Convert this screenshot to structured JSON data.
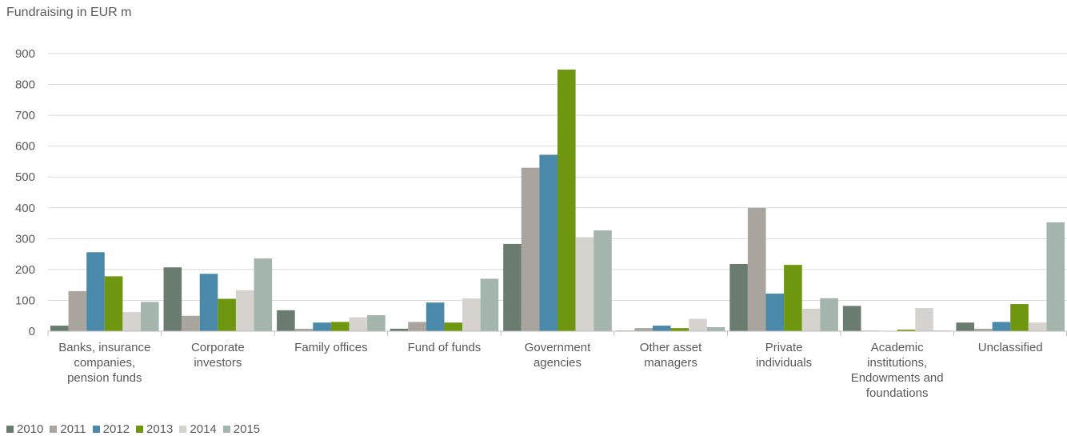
{
  "chart_data": {
    "type": "bar",
    "title": "Fundraising in EUR m",
    "categories": [
      "Banks, insurance companies, pension funds",
      "Corporate investors",
      "Family offices",
      "Fund of funds",
      "Government agencies",
      "Other asset managers",
      "Private individuals",
      "Academic institutions, Endowments and foundations",
      "Unclassified"
    ],
    "category_lines": [
      [
        "Banks, insurance",
        "companies,",
        "pension funds"
      ],
      [
        "Corporate",
        "investors"
      ],
      [
        "Family offices"
      ],
      [
        "Fund of funds"
      ],
      [
        "Government",
        "agencies"
      ],
      [
        "Other asset",
        "managers"
      ],
      [
        "Private",
        "individuals"
      ],
      [
        "Academic",
        "institutions,",
        "Endowments and",
        "foundations"
      ],
      [
        "Unclassified"
      ]
    ],
    "series": [
      {
        "name": "2010",
        "color": "#6a7c70",
        "values": [
          18,
          207,
          68,
          8,
          283,
          2,
          218,
          82,
          28
        ]
      },
      {
        "name": "2011",
        "color": "#aaa49e",
        "values": [
          130,
          50,
          8,
          30,
          530,
          10,
          400,
          2,
          8
        ]
      },
      {
        "name": "2012",
        "color": "#4a89aa",
        "values": [
          256,
          186,
          28,
          93,
          572,
          18,
          122,
          1,
          30
        ]
      },
      {
        "name": "2013",
        "color": "#6e960e",
        "values": [
          178,
          105,
          30,
          28,
          848,
          10,
          215,
          5,
          88
        ]
      },
      {
        "name": "2014",
        "color": "#d6d3cf",
        "values": [
          62,
          133,
          45,
          106,
          305,
          40,
          73,
          75,
          28
        ]
      },
      {
        "name": "2015",
        "color": "#a3b5ad",
        "values": [
          95,
          236,
          52,
          170,
          327,
          13,
          107,
          2,
          353
        ]
      }
    ],
    "y_ticks": [
      "0",
      "100",
      "200",
      "300",
      "400",
      "500",
      "600",
      "700",
      "800",
      "900"
    ],
    "ylim": [
      0,
      900
    ],
    "grid": true,
    "legend_position": "bottom-left"
  }
}
